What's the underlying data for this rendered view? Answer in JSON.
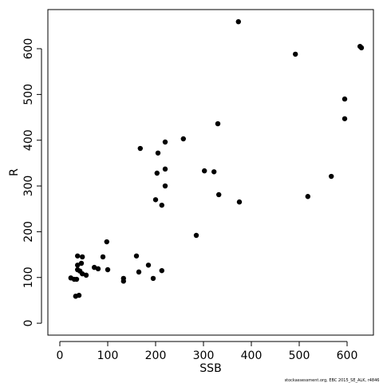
{
  "chart_data": {
    "type": "scatter",
    "xlabel": "SSB",
    "ylabel": "R",
    "x": [
      373,
      627,
      630,
      492,
      595,
      595,
      330,
      258,
      220,
      168,
      205,
      220,
      302,
      322,
      203,
      567,
      220,
      332,
      518,
      200,
      375,
      213,
      285,
      98,
      37,
      47,
      160,
      90,
      45,
      37,
      185,
      72,
      80,
      100,
      37,
      42,
      213,
      165,
      47,
      55,
      133,
      133,
      23,
      30,
      35,
      195,
      40,
      33
    ],
    "values": [
      659,
      605,
      602,
      588,
      490,
      447,
      436,
      403,
      396,
      382,
      372,
      337,
      333,
      331,
      328,
      321,
      300,
      281,
      277,
      270,
      265,
      258,
      192,
      178,
      147,
      145,
      147,
      145,
      131,
      127,
      127,
      122,
      119,
      117,
      117,
      114,
      115,
      112,
      108,
      105,
      98,
      92,
      99,
      96,
      96,
      98,
      61,
      59
    ],
    "color": "#000000",
    "xlim": [
      -25,
      655
    ],
    "ylim": [
      -26,
      685.5
    ],
    "xticks": [
      0,
      100,
      200,
      300,
      400,
      500,
      600
    ],
    "yticks": [
      0,
      100,
      200,
      300,
      400,
      500,
      600
    ]
  },
  "footnote": "stockassessment.org, EBC 2015_SE_ALK, r4846"
}
